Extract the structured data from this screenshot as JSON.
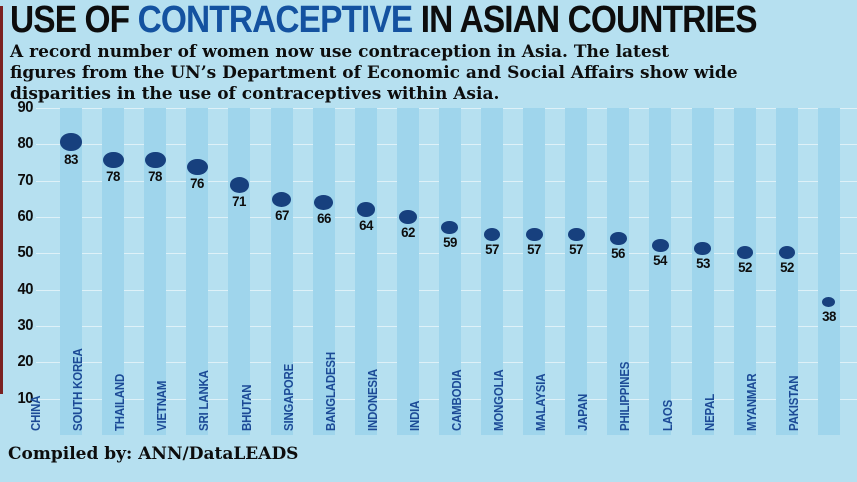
{
  "colors": {
    "background": "#b6e0f0",
    "stripe": "#9fd5ec",
    "dot": "#17407e",
    "country_label": "#1c4a96",
    "title_accent": "#1452a0",
    "text": "#0d0d0d",
    "accent_bar": "#7a2222",
    "gridline": "rgba(255,255,255,0.55)"
  },
  "header": {
    "title_parts": [
      "USE OF ",
      "CONTRACEPTIVE",
      " IN ASIAN COUNTRIES"
    ],
    "subtitle_lines": [
      "A record number of women now use contraception in Asia. The latest",
      "figures from the UN’s Department of Economic and Social Affairs show wide",
      "disparities in the use of contraceptives within Asia."
    ]
  },
  "footer": {
    "credit": "Compiled by: ANN/DataLEADS"
  },
  "chart_data": {
    "type": "scatter",
    "title": "USE OF CONTRACEPTIVE IN ASIAN COUNTRIES",
    "categories": [
      "CHINA",
      "SOUTH KOREA",
      "THAILAND",
      "VIETNAM",
      "SRI LANKA",
      "BHUTAN",
      "SINGAPORE",
      "BANGLADESH",
      "INDONESIA",
      "INDIA",
      "CAMBODIA",
      "MONGOLIA",
      "MALAYSIA",
      "JAPAN",
      "PHILIPPINES",
      "LAOS",
      "NEPAL",
      "MYANMAR",
      "PAKISTAN"
    ],
    "values": [
      83,
      78,
      78,
      76,
      71,
      67,
      66,
      64,
      62,
      59,
      57,
      57,
      57,
      56,
      54,
      53,
      52,
      52,
      38
    ],
    "xlabel": "",
    "ylabel": "",
    "ylim": [
      0,
      90
    ],
    "yticks": [
      90,
      80,
      70,
      60,
      50,
      40,
      30,
      20,
      10
    ],
    "grid": true,
    "legend": false,
    "marker_style": "filled ellipse, size proportional to value",
    "value_labels": true,
    "category_label_rotation": -90
  }
}
